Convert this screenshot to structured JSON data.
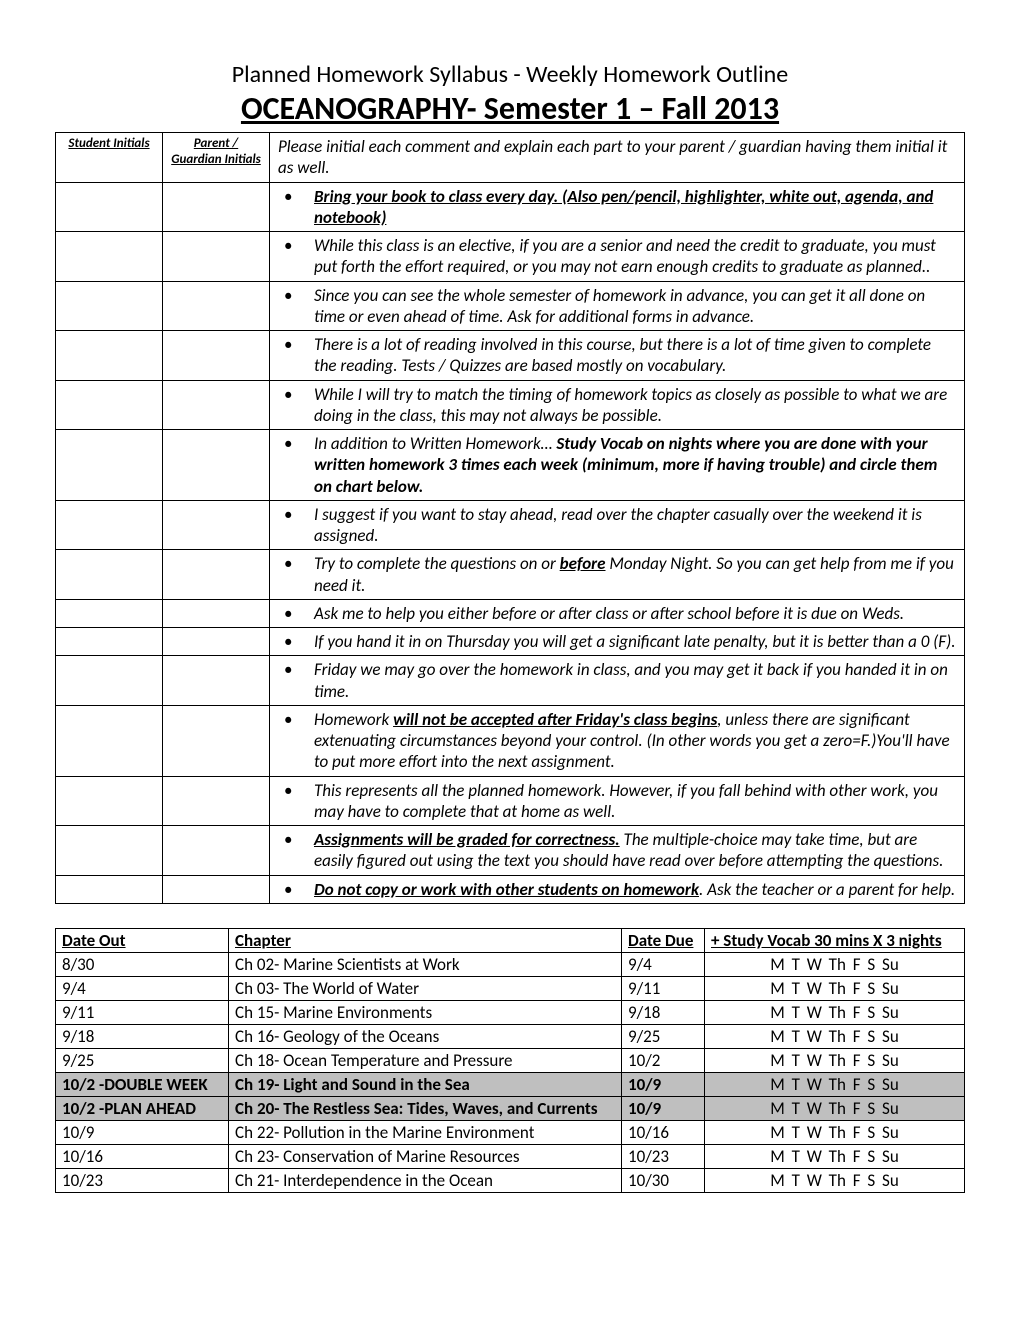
{
  "titles": {
    "pretitle": "Planned Homework Syllabus - Weekly Homework Outline",
    "main": "OCEANOGRAPHY- Semester 1 – Fall 2013"
  },
  "policy": {
    "student_header": "Student Initials",
    "parent_header": "Parent / Guardian Initials",
    "intro": "Please initial each comment and explain each part to your parent / guardian having them initial it as well.",
    "rows": {
      "r0": "Bring your book to class every day. (Also pen/pencil, highlighter, white out, agenda, and notebook)",
      "r1": "While this class is an elective, if you are a senior and need the credit to graduate, you must put forth the effort required, or you may not earn enough credits to graduate as planned..",
      "r2": "Since you can see the whole semester of homework in advance, you can get it all done on time or even ahead of time. Ask for additional forms in advance.",
      "r3": "There is a lot of reading involved in this course, but there is a lot of time given to complete the reading. Tests / Quizzes are based mostly on vocabulary.",
      "r4": "While I will try to match the timing of homework topics as closely as possible to what we are doing in the class, this may not always be possible.",
      "r5a": "In addition to Written Homework… ",
      "r5b": "Study Vocab on nights where you are done with your written homework 3 times each week (minimum, more if having trouble) and circle them on chart below.",
      "r6": "I suggest if you want to stay ahead, read over the chapter casually over the weekend it is assigned.",
      "r7a": "Try to complete the questions on or ",
      "r7b": "before",
      "r7c": "  Monday Night. So you can get help from me if you need it.",
      "r8": "Ask me to help you either before or after class or after school before it is due on Weds.",
      "r9": "If you hand it in on Thursday you will get a significant late penalty, but it is better than a 0 (F).",
      "r10": "Friday we may go over the homework in class, and you may get it back if you handed it in on time.",
      "r11a": "Homework ",
      "r11b": "will not be accepted after Friday's class begins",
      "r11c": ", unless there are significant extenuating circumstances beyond your control. (In other words you get a zero=F.)You'll have to put more effort into the next assignment.",
      "r12": "This represents all the planned homework. However, if you fall behind with other work, you may have to complete that at home as well.",
      "r13a": "Assignments will be graded for correctness.",
      "r13b": " The multiple-choice may take time, but are easily figured out using the text you should have read over before attempting the questions.",
      "r14a": "Do not copy or work with other students on homework",
      "r14b": ". Ask the teacher or a parent for help."
    }
  },
  "schedule": {
    "headers": {
      "dateout": "Date Out",
      "chapter": "Chapter",
      "datedue": "Date Due",
      "vocab": "+ Study Vocab 30 mins X 3 nights"
    },
    "days": "M  T  W  Th  F  S  Su",
    "rows": [
      {
        "dateout": "8/30",
        "chapter": "Ch 02- Marine Scientists at Work",
        "datedue": "9/4",
        "shade": false
      },
      {
        "dateout": "9/4",
        "chapter": "Ch 03- The World of Water",
        "datedue": "9/11",
        "shade": false
      },
      {
        "dateout": "9/11",
        "chapter": "Ch 15- Marine Environments",
        "datedue": "9/18",
        "shade": false
      },
      {
        "dateout": "9/18",
        "chapter": "Ch 16- Geology of the Oceans",
        "datedue": "9/25",
        "shade": false
      },
      {
        "dateout": "9/25",
        "chapter": "Ch 18- Ocean Temperature and Pressure",
        "datedue": "10/2",
        "shade": false
      },
      {
        "dateout": "10/2 -DOUBLE WEEK",
        "chapter": "Ch 19- Light and Sound in the Sea",
        "datedue": "10/9",
        "shade": true
      },
      {
        "dateout": "10/2 -PLAN AHEAD",
        "chapter": "Ch 20- The Restless Sea: Tides, Waves, and Currents",
        "datedue": "10/9",
        "shade": true
      },
      {
        "dateout": "10/9",
        "chapter": "Ch 22- Pollution in the Marine Environment",
        "datedue": "10/16",
        "shade": false
      },
      {
        "dateout": "10/16",
        "chapter": "Ch 23- Conservation of Marine Resources",
        "datedue": "10/23",
        "shade": false
      },
      {
        "dateout": "10/23",
        "chapter": "Ch 21- Interdependence in the Ocean",
        "datedue": "10/30",
        "shade": false
      }
    ]
  }
}
